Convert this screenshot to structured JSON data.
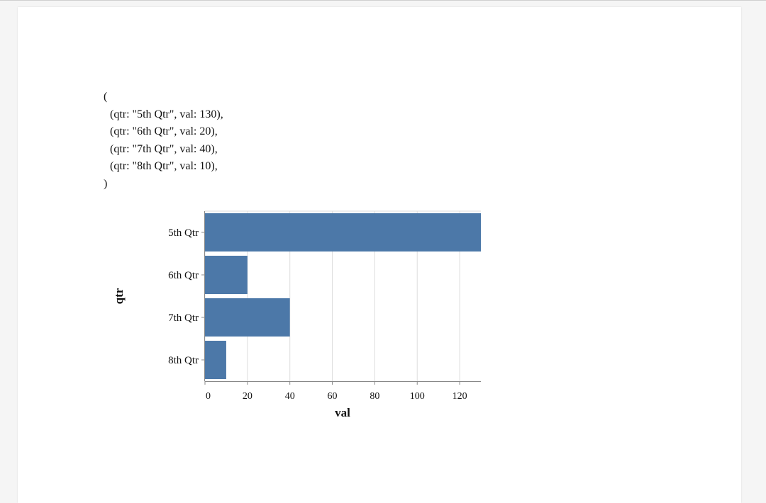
{
  "code_block": {
    "open": "(",
    "lines": [
      "(qtr: \"5th Qtr\", val: 130),",
      "(qtr: \"6th Qtr\", val: 20),",
      "(qtr: \"7th Qtr\", val: 40),",
      "(qtr: \"8th Qtr\", val: 10),"
    ],
    "close": ")"
  },
  "chart_data": {
    "type": "bar",
    "orientation": "horizontal",
    "categories": [
      "5th Qtr",
      "6th Qtr",
      "7th Qtr",
      "8th Qtr"
    ],
    "values": [
      130,
      20,
      40,
      10
    ],
    "xlabel": "val",
    "ylabel": "qtr",
    "xlim": [
      0,
      130
    ],
    "xticks": [
      0,
      20,
      40,
      60,
      80,
      100,
      120
    ],
    "grid": true,
    "bar_color": "#4c78a8",
    "grid_color": "#dddddd",
    "axis_color": "#888888"
  }
}
